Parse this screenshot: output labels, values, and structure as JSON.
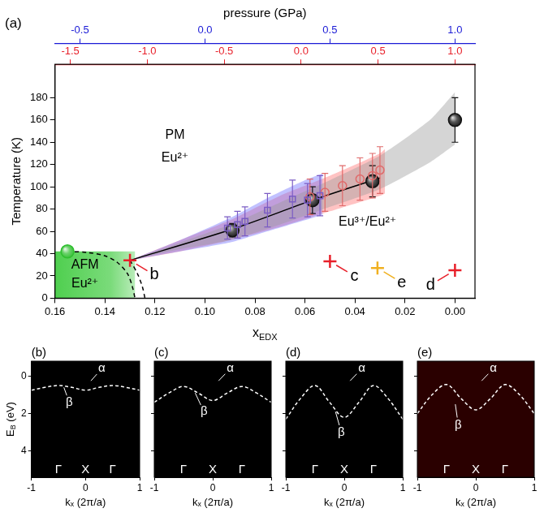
{
  "chart_data": [
    {
      "type": "scatter",
      "panel_label": "(a)",
      "x_label": [
        {
          "text": "x"
        },
        {
          "sub": "EDX"
        }
      ],
      "y_label": "Temperature (K)",
      "xlim": [
        0.16,
        -0.008
      ],
      "xticks": [
        0.16,
        0.14,
        0.12,
        {
          "value": 0.1,
          "label": "0.10"
        },
        0.08,
        0.06,
        0.04,
        0.02,
        {
          "value": 0,
          "label": "0.00"
        }
      ],
      "ylim": [
        0,
        210
      ],
      "yticks": [
        0,
        20,
        40,
        60,
        80,
        100,
        120,
        140,
        160,
        180
      ],
      "grid": false,
      "top_axes": [
        {
          "label": "pressure (GPa)",
          "color": "#1a1ad6",
          "xlim": [
            -0.6,
            1.08
          ],
          "xticks": [
            -0.5,
            {
              "value": 0,
              "label": "0.0"
            },
            0.5,
            {
              "value": 1,
              "label": "1.0"
            }
          ]
        },
        {
          "color": "#e8202a",
          "xlim": [
            -1.6,
            1.13
          ],
          "xticks": [
            -1.5,
            {
              "value": -1,
              "label": "-1.0"
            },
            -0.5,
            {
              "value": 0,
              "label": "0.0"
            },
            0.5,
            {
              "value": 1,
              "label": "1.0"
            }
          ]
        }
      ],
      "regions": [
        {
          "x": [
            0.16,
            0.128
          ],
          "y": [
            0,
            42
          ],
          "color": "#4fcf4f"
        }
      ],
      "series": [
        {
          "type": "band",
          "color": "#9a9a9a",
          "x": [
            0.13,
            0.11,
            0.09,
            0.07,
            0.05,
            0.03,
            0.01,
            0.0
          ],
          "low": [
            34,
            44,
            52,
            66,
            82,
            98,
            122,
            138
          ],
          "high": [
            34,
            50,
            66,
            86,
            106,
            128,
            160,
            185
          ]
        },
        {
          "type": "band",
          "color": "#6b6bff",
          "x": [
            0.13,
            0.11,
            0.09,
            0.075,
            0.06,
            0.053
          ],
          "low": [
            34,
            42,
            50,
            60,
            70,
            75
          ],
          "high": [
            34,
            52,
            72,
            90,
            106,
            112
          ]
        },
        {
          "type": "band",
          "color": "#ff7070",
          "x": [
            0.13,
            0.11,
            0.09,
            0.07,
            0.05,
            0.03,
            0.028
          ],
          "low": [
            34,
            42,
            52,
            64,
            78,
            92,
            94
          ],
          "high": [
            34,
            52,
            70,
            92,
            110,
            130,
            134
          ]
        },
        {
          "type": "line",
          "color": "#000000",
          "line_style": "solid",
          "x": [
            0.13,
            0.089,
            0.057,
            0.03
          ],
          "values": [
            34,
            62,
            88,
            108
          ]
        },
        {
          "type": "line",
          "color": "#000000",
          "line_style": "dashed",
          "x": [
            0.155,
            0.147,
            0.14,
            0.135,
            0.131,
            0.129,
            0.128
          ],
          "values": [
            42,
            41,
            38,
            32,
            22,
            10,
            0
          ]
        },
        {
          "type": "line",
          "color": "#000000",
          "line_style": "dashed",
          "x": [
            0.13,
            0.127,
            0.125,
            0.124
          ],
          "values": [
            34,
            22,
            10,
            0
          ]
        },
        {
          "type": "scatter",
          "marker": "square_open",
          "color": "#7b5cc4",
          "x": [
            0.091,
            0.087,
            0.084,
            0.075,
            0.065,
            0.059,
            0.054
          ],
          "values": [
            63,
            66,
            69,
            79,
            89,
            88,
            92
          ],
          "errors": [
            10,
            12,
            13,
            15,
            17,
            15,
            18
          ]
        },
        {
          "type": "scatter",
          "marker": "circle_open",
          "color": "#e06a6a",
          "x": [
            0.058,
            0.052,
            0.045,
            0.038,
            0.033,
            0.03
          ],
          "values": [
            91,
            95,
            101,
            107,
            110,
            115
          ],
          "errors": [
            16,
            17,
            18,
            19,
            20,
            21
          ]
        },
        {
          "type": "scatter",
          "marker": "sphere",
          "color": "#111111",
          "x": [
            0.089,
            0.057,
            0.033,
            0.0
          ],
          "values": [
            61,
            88,
            105,
            160
          ],
          "errors": [
            6,
            12,
            14,
            20
          ]
        },
        {
          "type": "scatter",
          "marker": "sphere",
          "color": "#2fbf2f",
          "x": [
            0.155
          ],
          "values": [
            42
          ]
        },
        {
          "type": "scatter",
          "marker": "cross",
          "color": "#e8202a",
          "x": [
            0.13,
            0.05,
            0.0
          ],
          "values": [
            34,
            33,
            25
          ],
          "labels": [
            "b",
            "c",
            "d"
          ]
        },
        {
          "type": "scatter",
          "marker": "cross",
          "color": "#f0b020",
          "x": [
            0.031
          ],
          "values": [
            27
          ],
          "labels": [
            "e"
          ]
        }
      ],
      "annotations": [
        {
          "text": "PM",
          "x": 0.112,
          "y": 146
        },
        {
          "text": "Eu²⁺",
          "x": 0.112,
          "y": 126
        },
        {
          "text": "Eu³⁺/Eu²⁺",
          "x": 0.035,
          "y": 68
        },
        {
          "text": "AFM",
          "x": 0.148,
          "y": 30
        },
        {
          "text": "Eu²⁺",
          "x": 0.148,
          "y": 13
        }
      ]
    },
    {
      "type": "line",
      "panel_label": "(b)",
      "color": "#000000",
      "x_label": "kₓ (2π/a)",
      "y_label": [
        {
          "text": "E"
        },
        {
          "sub": "B"
        },
        {
          "text": " (eV)"
        }
      ],
      "xlim": [
        -1,
        1
      ],
      "xticks": [
        -1,
        0,
        1
      ],
      "ylim": [
        5.4,
        -0.8
      ],
      "yticks": [
        0,
        2,
        4
      ],
      "series": [
        {
          "type": "line",
          "color": "#ffffff",
          "line_style": "dashed",
          "x": [
            -1,
            -0.75,
            -0.5,
            -0.25,
            0,
            0.25,
            0.5,
            0.75,
            1
          ],
          "values": [
            0.75,
            0.6,
            0.5,
            0.6,
            0.75,
            0.6,
            0.5,
            0.6,
            0.75
          ]
        }
      ],
      "annotations": [
        {
          "text": "α",
          "x": 0.3,
          "y": -0.4,
          "line_to": [
            0.1,
            0.25
          ],
          "color": "#ffffff"
        },
        {
          "text": "β",
          "x": -0.3,
          "y": 1.4,
          "line_to": [
            -0.4,
            0.6
          ],
          "color": "#ffffff"
        },
        {
          "text": "Γ",
          "x": -0.5,
          "y": 5.0,
          "color": "#ffffff"
        },
        {
          "text": "X",
          "x": 0,
          "y": 5.0,
          "color": "#ffffff"
        },
        {
          "text": "Γ",
          "x": 0.5,
          "y": 5.0,
          "color": "#ffffff"
        }
      ]
    },
    {
      "type": "line",
      "panel_label": "(c)",
      "color": "#000000",
      "tick_labels": "x",
      "x_label": "kₓ (2π/a)",
      "xlim": [
        -1,
        1
      ],
      "xticks": [
        -1,
        0,
        1
      ],
      "ylim": [
        5.4,
        -0.8
      ],
      "yticks": [
        0,
        2,
        4
      ],
      "series": [
        {
          "type": "line",
          "color": "#ffffff",
          "line_style": "dashed",
          "x": [
            -1,
            -0.75,
            -0.5,
            -0.25,
            0,
            0.25,
            0.5,
            0.75,
            1
          ],
          "values": [
            1.4,
            0.9,
            0.55,
            0.9,
            1.3,
            0.9,
            0.55,
            0.9,
            1.4
          ]
        }
      ],
      "annotations": [
        {
          "text": "α",
          "x": 0.3,
          "y": -0.4,
          "line_to": [
            0.1,
            0.25
          ],
          "color": "#ffffff"
        },
        {
          "text": "β",
          "x": -0.15,
          "y": 1.9,
          "line_to": [
            -0.3,
            0.9
          ],
          "color": "#ffffff"
        },
        {
          "text": "Γ",
          "x": -0.5,
          "y": 5.0,
          "color": "#ffffff"
        },
        {
          "text": "X",
          "x": 0,
          "y": 5.0,
          "color": "#ffffff"
        },
        {
          "text": "Γ",
          "x": 0.5,
          "y": 5.0,
          "color": "#ffffff"
        }
      ]
    },
    {
      "type": "line",
      "panel_label": "(d)",
      "color": "#000000",
      "tick_labels": "x",
      "x_label": "kₓ (2π/a)",
      "xlim": [
        -1,
        1
      ],
      "xticks": [
        -1,
        0,
        1
      ],
      "ylim": [
        5.4,
        -0.8
      ],
      "yticks": [
        0,
        2,
        4
      ],
      "series": [
        {
          "type": "line",
          "color": "#ffffff",
          "line_style": "dashed",
          "x": [
            -1,
            -0.75,
            -0.5,
            -0.25,
            0,
            0.25,
            0.5,
            0.75,
            1
          ],
          "values": [
            2.3,
            1.2,
            0.5,
            1.4,
            2.2,
            1.4,
            0.5,
            1.2,
            2.3
          ]
        }
      ],
      "annotations": [
        {
          "text": "α",
          "x": 0.3,
          "y": -0.4,
          "line_to": [
            0.1,
            0.25
          ],
          "color": "#ffffff"
        },
        {
          "text": "β",
          "x": -0.05,
          "y": 3.0,
          "line_to": [
            -0.15,
            1.9
          ],
          "color": "#ffffff"
        },
        {
          "text": "Γ",
          "x": -0.5,
          "y": 5.0,
          "color": "#ffffff"
        },
        {
          "text": "X",
          "x": 0,
          "y": 5.0,
          "color": "#ffffff"
        },
        {
          "text": "Γ",
          "x": 0.5,
          "y": 5.0,
          "color": "#ffffff"
        }
      ]
    },
    {
      "type": "line",
      "panel_label": "(e)",
      "color": "#2a0000",
      "tick_labels": "x",
      "x_label": "kₓ (2π/a)",
      "xlim": [
        -1,
        1
      ],
      "xticks": [
        -1,
        0,
        1
      ],
      "ylim": [
        5.4,
        -0.8
      ],
      "yticks": [
        0,
        2,
        4
      ],
      "series": [
        {
          "type": "line",
          "color": "#ffffff",
          "line_style": "dashed",
          "x": [
            -1,
            -0.75,
            -0.5,
            -0.25,
            0,
            0.25,
            0.5,
            0.75,
            1
          ],
          "values": [
            2.0,
            1.0,
            0.45,
            1.2,
            1.8,
            1.2,
            0.45,
            1.0,
            2.0
          ]
        }
      ],
      "annotations": [
        {
          "text": "α",
          "x": 0.3,
          "y": -0.4,
          "line_to": [
            0.1,
            0.25
          ],
          "color": "#ffffff"
        },
        {
          "text": "β",
          "x": -0.3,
          "y": 2.6,
          "line_to": [
            -0.35,
            1.5
          ],
          "color": "#ffffff"
        },
        {
          "text": "Γ",
          "x": -0.5,
          "y": 5.0,
          "color": "#ffffff"
        },
        {
          "text": "X",
          "x": 0,
          "y": 5.0,
          "color": "#ffffff"
        },
        {
          "text": "Γ",
          "x": 0.5,
          "y": 5.0,
          "color": "#ffffff"
        }
      ]
    }
  ]
}
